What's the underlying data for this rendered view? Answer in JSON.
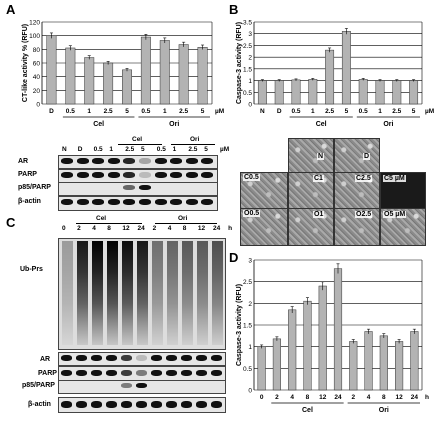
{
  "panels": {
    "A": "A",
    "B": "B",
    "C": "C",
    "D": "D"
  },
  "chart_data": [
    {
      "type": "bar",
      "panel": "A",
      "ylabel": "CT-like activity % (RFU)",
      "ylim": [
        0,
        120
      ],
      "yticks": [
        "0",
        "20",
        "40",
        "60",
        "80",
        "100",
        "120"
      ],
      "categories": [
        "D",
        "0.5",
        "1",
        "2.5",
        "5",
        "0.5",
        "1",
        "2.5",
        "5"
      ],
      "unit": "µM",
      "values": [
        100,
        82,
        68,
        60,
        50,
        98,
        93,
        87,
        83
      ],
      "groups": [
        {
          "name": "Cel",
          "from": 1,
          "to": 4
        },
        {
          "name": "Ori",
          "from": 5,
          "to": 8
        }
      ]
    },
    {
      "type": "bar",
      "panel": "B",
      "ylabel": "Caspase-3 activity (RFU)",
      "ylim": [
        0,
        3.5
      ],
      "yticks": [
        "0",
        "0.5",
        "1",
        "1.5",
        "2",
        "2.5",
        "3",
        "3.5"
      ],
      "categories": [
        "N",
        "D",
        "0.5",
        "1",
        "2.5",
        "5",
        "0.5",
        "1",
        "2.5",
        "5"
      ],
      "unit": "µM",
      "values": [
        1.0,
        1.0,
        1.03,
        1.05,
        2.3,
        3.1,
        1.05,
        1.0,
        1.0,
        1.0
      ],
      "groups": [
        {
          "name": "Cel",
          "from": 2,
          "to": 5
        },
        {
          "name": "Ori",
          "from": 6,
          "to": 9
        }
      ]
    },
    {
      "type": "bar",
      "panel": "D",
      "ylabel": "Caspase-3 activity (RFU)",
      "ylim": [
        0,
        3
      ],
      "yticks": [
        "0",
        "0.5",
        "1",
        "1.5",
        "2",
        "2.5",
        "3"
      ],
      "categories": [
        "0",
        "2",
        "4",
        "8",
        "12",
        "24",
        "2",
        "4",
        "8",
        "12",
        "24"
      ],
      "unit": "h",
      "values": [
        1.0,
        1.18,
        1.85,
        2.05,
        2.4,
        2.8,
        1.12,
        1.35,
        1.25,
        1.12,
        1.35
      ],
      "groups": [
        {
          "name": "Cel",
          "from": 1,
          "to": 5
        },
        {
          "name": "Ori",
          "from": 6,
          "to": 10
        }
      ]
    }
  ],
  "blotA": {
    "top_labels": [
      "N",
      "D",
      "0.5",
      "1",
      "2.5",
      "5",
      "0.5",
      "1",
      "2.5",
      "5"
    ],
    "unit": "µM",
    "groups": [
      "Cel",
      "Ori"
    ],
    "rows": [
      "AR",
      "PARP",
      "p85/PARP",
      "β-actin"
    ]
  },
  "blotC": {
    "top_labels": [
      "0",
      "2",
      "4",
      "8",
      "12",
      "24",
      "2",
      "4",
      "8",
      "12",
      "24"
    ],
    "unit": "h",
    "groups": [
      "Cel",
      "Ori"
    ],
    "rows": [
      "Ub-Prs",
      "AR",
      "PARP",
      "p85/PARP",
      "β-actin"
    ]
  },
  "micro": [
    "N",
    "D",
    "C0.5",
    "C1",
    "C2.5",
    "C5 µM",
    "O0.5",
    "O1",
    "O2.5",
    "O5 µM"
  ]
}
